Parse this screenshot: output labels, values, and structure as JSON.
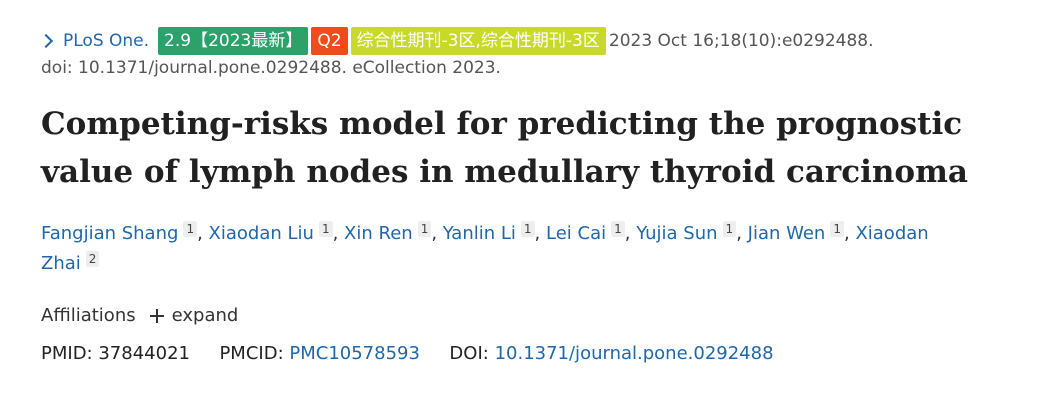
{
  "citation": {
    "journal": "PLoS One.",
    "badge_if": "2.9【2023最新】",
    "badge_quartile": "Q2",
    "badge_zone": "综合性期刊-3区,综合性期刊-3区",
    "date_volume": "2023 Oct 16;18(10):e0292488.",
    "doi_line": "doi: 10.1371/journal.pone.0292488. eCollection 2023.",
    "colors": {
      "link": "#1f67a8",
      "badge_if": "#2aa26a",
      "badge_quartile": "#f04b1a",
      "badge_zone": "#c8d92a"
    }
  },
  "title": "Competing-risks model for predicting the prognostic value of lymph nodes in medullary thyroid carcinoma",
  "authors": [
    {
      "name": "Fangjian Shang",
      "aff": "1"
    },
    {
      "name": "Xiaodan Liu",
      "aff": "1"
    },
    {
      "name": "Xin Ren",
      "aff": "1"
    },
    {
      "name": "Yanlin Li",
      "aff": "1"
    },
    {
      "name": "Lei Cai",
      "aff": "1"
    },
    {
      "name": "Yujia Sun",
      "aff": "1"
    },
    {
      "name": "Jian Wen",
      "aff": "1"
    },
    {
      "name": "Xiaodan Zhai",
      "aff": "2"
    }
  ],
  "affiliations": {
    "label": "Affiliations",
    "expand_label": "expand"
  },
  "identifiers": {
    "pmid_label": "PMID:",
    "pmid_value": "37844021",
    "pmcid_label": "PMCID:",
    "pmcid_value": "PMC10578593",
    "doi_label": "DOI:",
    "doi_value": "10.1371/journal.pone.0292488"
  }
}
